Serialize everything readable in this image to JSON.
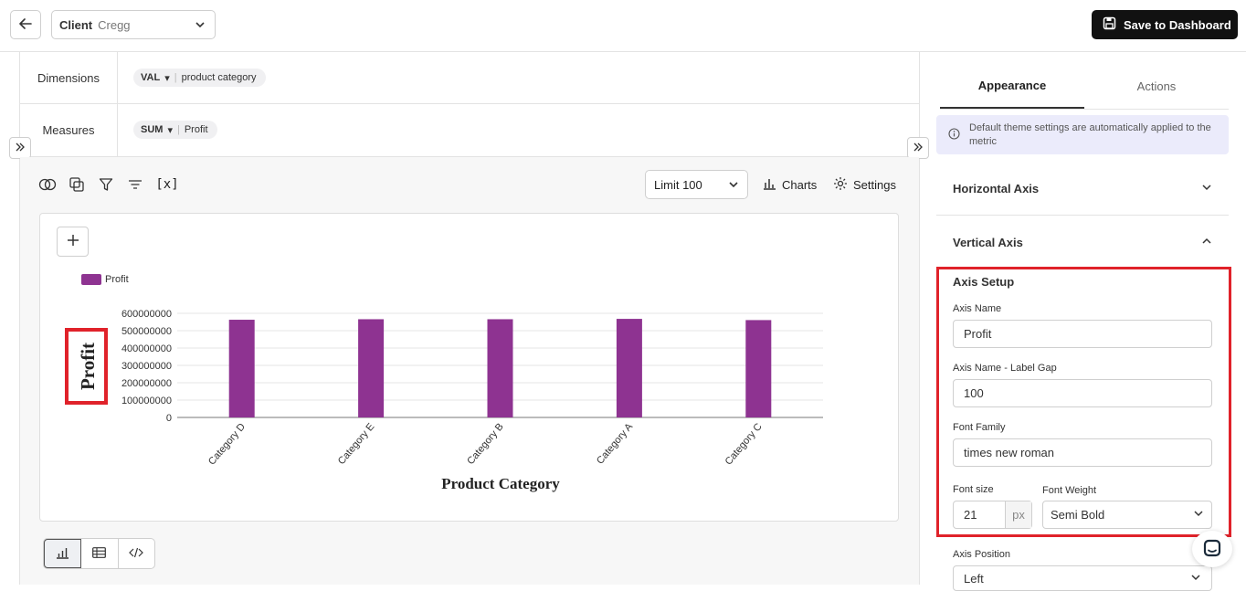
{
  "header": {
    "client_label": "Client",
    "client_value": "Cregg",
    "save_label": "Save to Dashboard"
  },
  "query": {
    "dimensions_label": "Dimensions",
    "dimension_agg": "VAL",
    "dimension_field": "product category",
    "measures_label": "Measures",
    "measure_agg": "SUM",
    "measure_field": "Profit"
  },
  "toolbar": {
    "limit_label": "Limit",
    "limit_value": "100",
    "charts_label": "Charts",
    "settings_label": "Settings",
    "variables_label": "[x]"
  },
  "chart_data": {
    "type": "bar",
    "categories": [
      "Category D",
      "Category E",
      "Category B",
      "Category A",
      "Category C"
    ],
    "series": [
      {
        "name": "Profit",
        "values": [
          563000000,
          566000000,
          566000000,
          568000000,
          561000000
        ],
        "color": "#8e3391"
      }
    ],
    "ylabel": "Profit",
    "xlabel": "Product Category",
    "ylim": [
      0,
      600000000
    ],
    "yticks": [
      "600000000",
      "500000000",
      "400000000",
      "300000000",
      "200000000",
      "100000000",
      "0"
    ],
    "legend": "top-left",
    "grid": true
  },
  "panel": {
    "tab_appearance": "Appearance",
    "tab_actions": "Actions",
    "info_text": "Default theme settings are automatically applied to the metric",
    "horizontal_axis": "Horizontal Axis",
    "vertical_axis": "Vertical Axis",
    "axis_setup": "Axis Setup",
    "axis_name_label": "Axis Name",
    "axis_name_value": "Profit",
    "label_gap_label": "Axis Name - Label Gap",
    "label_gap_value": "100",
    "font_family_label": "Font Family",
    "font_family_value": "times new roman",
    "font_size_label": "Font size",
    "font_size_value": "21",
    "font_size_unit": "px",
    "font_weight_label": "Font Weight",
    "font_weight_value": "Semi Bold",
    "axis_position_label": "Axis Position",
    "axis_position_value": "Left"
  },
  "colors": {
    "accent_red": "#e0222a",
    "bar": "#8e3391",
    "info_bg": "#ebebfb"
  }
}
